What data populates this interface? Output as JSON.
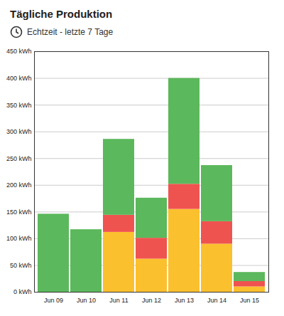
{
  "chart_data": {
    "type": "bar",
    "title": "Tägliche Produktion",
    "subtitle": "Echtzeit - letzte 7 Tage",
    "categories": [
      "Jun 09",
      "Jun 10",
      "Jun 11",
      "Jun 12",
      "Jun 13",
      "Jun 14",
      "Jun 15"
    ],
    "series": [
      {
        "color": "#fbc02d",
        "values": [
          0,
          0,
          112,
          62,
          155,
          90,
          10
        ]
      },
      {
        "color": "#ef5350",
        "values": [
          0,
          0,
          32,
          39,
          47,
          42,
          10
        ]
      },
      {
        "color": "#5cb85c",
        "values": [
          146,
          117,
          142,
          75,
          198,
          105,
          17
        ]
      }
    ],
    "stacked": true,
    "ylim": [
      0,
      450
    ],
    "yticks": [
      {
        "value": 0,
        "label": "0 kWh"
      },
      {
        "value": 50,
        "label": "50 kWh"
      },
      {
        "value": 100,
        "label": "100 kWh"
      },
      {
        "value": 150,
        "label": "150 kWh"
      },
      {
        "value": 200,
        "label": "200 kWh"
      },
      {
        "value": 250,
        "label": "250 kWh"
      },
      {
        "value": 300,
        "label": "300 kWh"
      },
      {
        "value": 350,
        "label": "350 kWh"
      },
      {
        "value": 400,
        "label": "400 kWh"
      },
      {
        "value": 450,
        "label": "450 kWh"
      }
    ],
    "grid": true
  }
}
